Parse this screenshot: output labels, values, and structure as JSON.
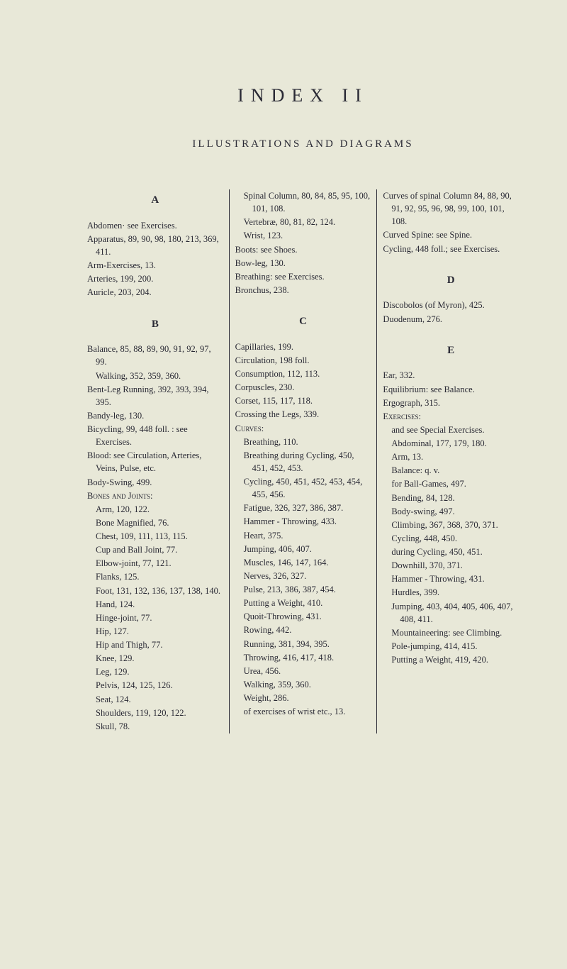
{
  "title": "INDEX II",
  "subtitle": "ILLUSTRATIONS AND DIAGRAMS",
  "col1": {
    "sectA": "A",
    "a1": "Abdomen· see Exercises.",
    "a2": "Apparatus, 89, 90, 98, 180, 213, 369, 411.",
    "a3": "Arm-Exercises, 13.",
    "a4": "Arteries, 199, 200.",
    "a5": "Auricle, 203, 204.",
    "sectB": "B",
    "b1": "Balance, 85, 88, 89, 90, 91, 92, 97, 99.",
    "b1a": "Walking, 352, 359, 360.",
    "b2": "Bent-Leg Running, 392, 393, 394, 395.",
    "b3": "Bandy-leg, 130.",
    "b4": "Bicycling, 99, 448 foll. : see Exercises.",
    "b5": "Blood: see Circulation, Arteries, Veins, Pulse, etc.",
    "b6": "Body-Swing, 499.",
    "b7": "Bones and Joints:",
    "b7a": "Arm, 120, 122.",
    "b7b": "Bone Magnified, 76.",
    "b7c": "Chest, 109, 111, 113, 115.",
    "b7d": "Cup and Ball Joint, 77.",
    "b7e": "Elbow-joint, 77, 121.",
    "b7f": "Flanks, 125.",
    "b7g": "Foot, 131, 132, 136, 137, 138, 140.",
    "b7h": "Hand, 124.",
    "b7i": "Hinge-joint, 77.",
    "b7j": "Hip, 127.",
    "b7k": "Hip and Thigh, 77.",
    "b7l": "Knee, 129.",
    "b7m": "Leg, 129.",
    "b7n": "Pelvis, 124, 125, 126.",
    "b7o": "Seat, 124.",
    "b7p": "Shoulders, 119, 120, 122.",
    "b7q": "Skull, 78."
  },
  "col2": {
    "c1": "Spinal Column, 80, 84, 85, 95, 100, 101, 108.",
    "c2": "Vertebræ, 80, 81, 82, 124.",
    "c3": "Wrist, 123.",
    "c4": "Boots: see Shoes.",
    "c5": "Bow-leg, 130.",
    "c6": "Breathing: see Exercises.",
    "c7": "Bronchus, 238.",
    "sectC": "C",
    "cc1": "Capillaries, 199.",
    "cc2": "Circulation, 198 foll.",
    "cc3": "Consumption, 112, 113.",
    "cc4": "Corpuscles, 230.",
    "cc5": "Corset, 115, 117, 118.",
    "cc6": "Crossing the Legs, 339.",
    "cc7": "Curves:",
    "cc7a": "Breathing, 110.",
    "cc7b": "Breathing during Cycling, 450, 451, 452, 453.",
    "cc7c": "Cycling, 450, 451, 452, 453, 454, 455, 456.",
    "cc7d": "Fatigue, 326, 327, 386, 387.",
    "cc7e": "Hammer - Throwing, 433.",
    "cc7f": "Heart, 375.",
    "cc7g": "Jumping, 406, 407.",
    "cc7h": "Muscles, 146, 147, 164.",
    "cc7i": "Nerves, 326, 327.",
    "cc7j": "Pulse, 213, 386, 387, 454.",
    "cc7k": "Putting a Weight, 410.",
    "cc7l": "Quoit-Throwing, 431.",
    "cc7m": "Rowing, 442.",
    "cc7n": "Running, 381, 394, 395.",
    "cc7o": "Throwing, 416, 417, 418.",
    "cc7p": "Urea, 456.",
    "cc7q": "Walking, 359, 360.",
    "cc7r": "Weight, 286.",
    "cc7s": "of exercises of wrist etc., 13."
  },
  "col3": {
    "d1": "Curves of spinal Column 84, 88, 90, 91, 92, 95, 96, 98, 99, 100, 101, 108.",
    "d2": "Curved Spine: see Spine.",
    "d3": "Cycling, 448 foll.; see Exercises.",
    "sectD": "D",
    "dd1": "Discobolos (of Myron), 425.",
    "dd2": "Duodenum, 276.",
    "sectE": "E",
    "e1": "Ear, 332.",
    "e2": "Equilibrium: see Balance.",
    "e3": "Ergograph, 315.",
    "e4": "Exercises:",
    "e4a": "and see Special Exercises.",
    "e4b": "Abdominal, 177, 179, 180.",
    "e4c": "Arm, 13.",
    "e4d": "Balance: q. v.",
    "e4e": "for Ball-Games, 497.",
    "e4f": "Bending, 84, 128.",
    "e4g": "Body-swing, 497.",
    "e4h": "Climbing, 367, 368, 370, 371.",
    "e4i": "Cycling, 448, 450.",
    "e4j": "during Cycling, 450, 451.",
    "e4k": "Downhill, 370, 371.",
    "e4l": "Hammer - Throwing, 431.",
    "e4m": "Hurdles, 399.",
    "e4n": "Jumping, 403, 404, 405, 406, 407, 408, 411.",
    "e4o": "Mountaineering: see Climbing.",
    "e4p": "Pole-jumping, 414, 415.",
    "e4q": "Putting a Weight, 419, 420."
  }
}
